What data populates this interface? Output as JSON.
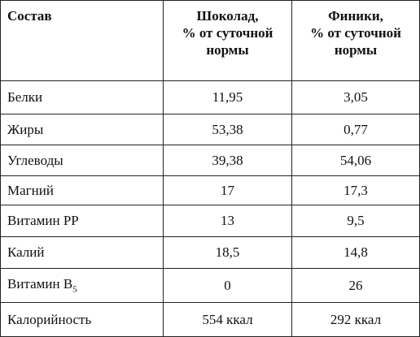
{
  "table": {
    "header": [
      "Состав",
      "Шоколад,\n% от суточной\nнормы",
      "Финики,\n% от суточной\nнормы"
    ],
    "rows": [
      [
        "Белки",
        "11,95",
        "3,05"
      ],
      [
        "Жиры",
        "53,38",
        "0,77"
      ],
      [
        "Углеводы",
        "39,38",
        "54,06"
      ],
      [
        "Магний",
        "17",
        "17,3"
      ],
      [
        "Витамин PP",
        "13",
        "9,5"
      ],
      [
        "Калий",
        "18,5",
        "14,8"
      ],
      [
        {
          "text": "Витамин B",
          "sub": "5"
        },
        "0",
        "26"
      ],
      [
        "Калорийность",
        "554 ккал",
        "292 ккал"
      ]
    ]
  }
}
